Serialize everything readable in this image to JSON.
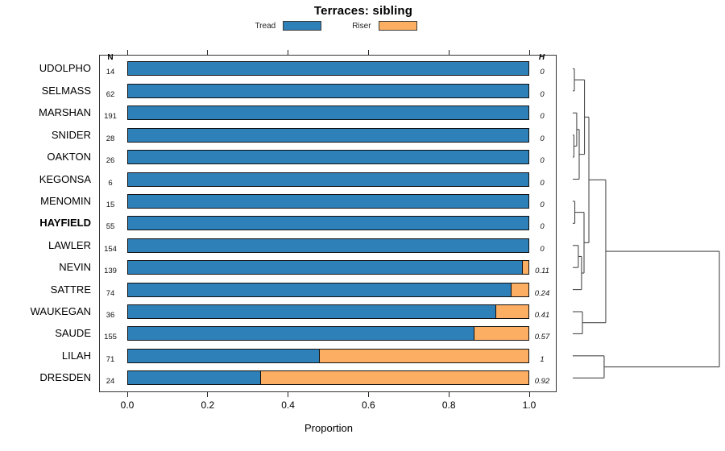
{
  "title": "Terraces: sibling",
  "legend": {
    "items": [
      {
        "label": "Tread",
        "color_key": "tread"
      },
      {
        "label": "Riser",
        "color_key": "riser"
      }
    ]
  },
  "colors": {
    "tread": "#2E80B9",
    "riser": "#FCAE63",
    "bar_border": "#111111",
    "frame": "#333333",
    "dendro_line": "#4a4a4a"
  },
  "columns": {
    "n_header": "N",
    "h_header": "H"
  },
  "x_axis": {
    "label": "Proportion",
    "ticks": [
      "0.0",
      "0.2",
      "0.4",
      "0.6",
      "0.8",
      "1.0"
    ],
    "range": [
      0,
      1
    ]
  },
  "rows": [
    {
      "name": "UDOLPHO",
      "n": 14,
      "tread": 1.0,
      "riser": 0.0,
      "h": "0",
      "bold": false
    },
    {
      "name": "SELMASS",
      "n": 62,
      "tread": 1.0,
      "riser": 0.0,
      "h": "0",
      "bold": false
    },
    {
      "name": "MARSHAN",
      "n": 191,
      "tread": 1.0,
      "riser": 0.0,
      "h": "0",
      "bold": false
    },
    {
      "name": "SNIDER",
      "n": 28,
      "tread": 1.0,
      "riser": 0.0,
      "h": "0",
      "bold": false
    },
    {
      "name": "OAKTON",
      "n": 26,
      "tread": 1.0,
      "riser": 0.0,
      "h": "0",
      "bold": false
    },
    {
      "name": "KEGONSA",
      "n": 6,
      "tread": 1.0,
      "riser": 0.0,
      "h": "0",
      "bold": false
    },
    {
      "name": "MENOMIN",
      "n": 15,
      "tread": 1.0,
      "riser": 0.0,
      "h": "0",
      "bold": false
    },
    {
      "name": "HAYFIELD",
      "n": 55,
      "tread": 1.0,
      "riser": 0.0,
      "h": "0",
      "bold": true
    },
    {
      "name": "LAWLER",
      "n": 154,
      "tread": 1.0,
      "riser": 0.0,
      "h": "0",
      "bold": false
    },
    {
      "name": "NEVIN",
      "n": 139,
      "tread": 0.984,
      "riser": 0.016,
      "h": "0.11",
      "bold": false
    },
    {
      "name": "SATTRE",
      "n": 74,
      "tread": 0.956,
      "riser": 0.044,
      "h": "0.24",
      "bold": false
    },
    {
      "name": "WAUKEGAN",
      "n": 36,
      "tread": 0.917,
      "riser": 0.083,
      "h": "0.41",
      "bold": false
    },
    {
      "name": "SAUDE",
      "n": 155,
      "tread": 0.864,
      "riser": 0.136,
      "h": "0.57",
      "bold": false
    },
    {
      "name": "LILAH",
      "n": 71,
      "tread": 0.478,
      "riser": 0.522,
      "h": "1",
      "bold": false
    },
    {
      "name": "DRESDEN",
      "n": 24,
      "tread": 0.333,
      "riser": 0.667,
      "h": "0.92",
      "bold": false
    }
  ],
  "dendrogram": {
    "note": "right-hand dendrogram; merges reference leaf names or prior merges m0..m12; h is normalized merge height 0-1",
    "merges": [
      {
        "a": "UDOLPHO",
        "b": "SELMASS",
        "h": 0.011
      },
      {
        "a": "SNIDER",
        "b": "OAKTON",
        "h": 0.008
      },
      {
        "a": "MARSHAN",
        "b": "m1",
        "h": 0.027
      },
      {
        "a": "m2",
        "b": "KEGONSA",
        "h": 0.044
      },
      {
        "a": "m0",
        "b": "m3",
        "h": 0.08
      },
      {
        "a": "MENOMIN",
        "b": "HAYFIELD",
        "h": 0.014
      },
      {
        "a": "LAWLER",
        "b": "NEVIN",
        "h": 0.038
      },
      {
        "a": "m6",
        "b": "SATTRE",
        "h": 0.06
      },
      {
        "a": "m5",
        "b": "m7",
        "h": 0.077
      },
      {
        "a": "m4",
        "b": "m8",
        "h": 0.11
      },
      {
        "a": "WAUKEGAN",
        "b": "SAUDE",
        "h": 0.066
      },
      {
        "a": "m9",
        "b": "m10",
        "h": 0.225
      },
      {
        "a": "LILAH",
        "b": "DRESDEN",
        "h": 0.214
      },
      {
        "a": "m11",
        "b": "m12",
        "h": 1.0
      }
    ]
  },
  "chart_data": {
    "type": "bar",
    "orientation": "horizontal",
    "stacked": true,
    "title": "Terraces: sibling",
    "categories": [
      "UDOLPHO",
      "SELMASS",
      "MARSHAN",
      "SNIDER",
      "OAKTON",
      "KEGONSA",
      "MENOMIN",
      "HAYFIELD",
      "LAWLER",
      "NEVIN",
      "SATTRE",
      "WAUKEGAN",
      "SAUDE",
      "LILAH",
      "DRESDEN"
    ],
    "series": [
      {
        "name": "Tread",
        "color": "#2E80B9",
        "values": [
          1.0,
          1.0,
          1.0,
          1.0,
          1.0,
          1.0,
          1.0,
          1.0,
          1.0,
          0.984,
          0.956,
          0.917,
          0.864,
          0.478,
          0.333
        ]
      },
      {
        "name": "Riser",
        "color": "#FCAE63",
        "values": [
          0.0,
          0.0,
          0.0,
          0.0,
          0.0,
          0.0,
          0.0,
          0.0,
          0.0,
          0.016,
          0.044,
          0.083,
          0.136,
          0.522,
          0.667
        ]
      }
    ],
    "n_values": [
      14,
      62,
      191,
      28,
      26,
      6,
      15,
      55,
      154,
      139,
      74,
      36,
      155,
      71,
      24
    ],
    "h_values": [
      0,
      0,
      0,
      0,
      0,
      0,
      0,
      0,
      0,
      0.11,
      0.24,
      0.41,
      0.57,
      1,
      0.92
    ],
    "highlighted_category": "HAYFIELD",
    "xlabel": "Proportion",
    "xlim": [
      0,
      1
    ],
    "x_ticks": [
      0.0,
      0.2,
      0.4,
      0.6,
      0.8,
      1.0
    ],
    "legend_position": "top",
    "extras": "N column on left inside frame, italic H column on right, hierarchical-clustering dendrogram drawn to the right of the frame"
  }
}
